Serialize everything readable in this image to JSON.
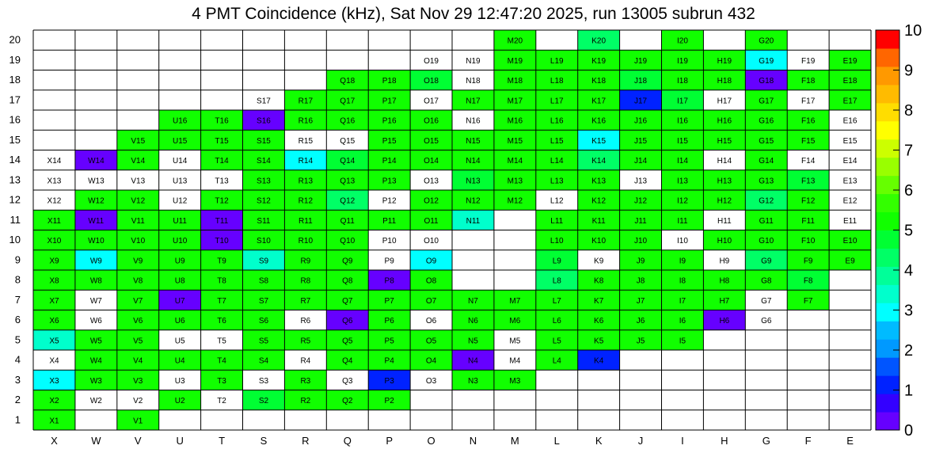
{
  "chart_data": {
    "type": "heatmap",
    "title": "4 PMT Coincidence (kHz), Sat Nov 29 12:47:20 2025, run 13005 subrun 432",
    "columns": [
      "X",
      "W",
      "V",
      "U",
      "T",
      "S",
      "R",
      "Q",
      "P",
      "O",
      "N",
      "M",
      "L",
      "K",
      "J",
      "I",
      "H",
      "G",
      "F",
      "E"
    ],
    "rows": [
      "1",
      "2",
      "3",
      "4",
      "5",
      "6",
      "7",
      "8",
      "9",
      "10",
      "11",
      "12",
      "13",
      "14",
      "15",
      "16",
      "17",
      "18",
      "19",
      "20"
    ],
    "zlim": [
      0,
      10
    ],
    "colorbar_ticks": [
      "0",
      "1",
      "2",
      "3",
      "4",
      "5",
      "6",
      "7",
      "8",
      "9",
      "10"
    ],
    "cells": {
      "20": {
        "M": 5.0,
        "K": 4.4,
        "I": 5.0,
        "G": 5.0
      },
      "19": {
        "O": null,
        "N": null,
        "M": 5.0,
        "L": 5.0,
        "K": 5.0,
        "J": 5.0,
        "I": 5.0,
        "H": 5.0,
        "G": 3.0,
        "F": null,
        "E": 5.0
      },
      "18": {
        "Q": 5.0,
        "P": 5.0,
        "O": 4.6,
        "N": null,
        "M": 5.0,
        "L": 5.0,
        "K": 5.0,
        "J": 4.8,
        "I": 5.0,
        "H": 5.0,
        "G": 0.2,
        "F": 5.0,
        "E": 5.0
      },
      "17": {
        "S": null,
        "R": 5.0,
        "Q": 5.0,
        "P": 5.0,
        "O": null,
        "N": 5.0,
        "M": 5.0,
        "L": 5.0,
        "K": 5.0,
        "J": 1.2,
        "I": 4.8,
        "H": null,
        "G": 5.0,
        "F": null,
        "E": 5.0
      },
      "16": {
        "U": 5.0,
        "T": 5.0,
        "S": 0.3,
        "R": 5.0,
        "Q": 5.0,
        "P": 5.0,
        "O": 5.0,
        "N": null,
        "M": 5.0,
        "L": 5.0,
        "K": 5.0,
        "J": 5.0,
        "I": 5.0,
        "H": 5.0,
        "G": 5.0,
        "F": 5.0,
        "E": null
      },
      "15": {
        "V": 5.0,
        "U": 5.0,
        "T": 5.0,
        "S": 5.0,
        "R": null,
        "Q": null,
        "P": 5.0,
        "O": 5.0,
        "N": 5.0,
        "M": 5.0,
        "L": 5.0,
        "K": 3.0,
        "J": 5.0,
        "I": 5.0,
        "H": 5.0,
        "G": 5.0,
        "F": 5.0,
        "E": null
      },
      "14": {
        "X": null,
        "W": 0.3,
        "V": 5.0,
        "U": null,
        "T": 5.0,
        "S": 5.0,
        "R": 3.0,
        "Q": 4.6,
        "P": 5.0,
        "O": 5.0,
        "N": 5.0,
        "M": 5.0,
        "L": 5.0,
        "K": 4.4,
        "J": 5.0,
        "I": 5.0,
        "H": null,
        "G": 5.0,
        "F": null,
        "E": null
      },
      "13": {
        "X": null,
        "W": null,
        "V": null,
        "U": null,
        "T": null,
        "S": 5.0,
        "R": 5.0,
        "Q": 5.0,
        "P": 5.0,
        "O": null,
        "N": 4.6,
        "M": 5.0,
        "L": 5.0,
        "K": 5.0,
        "J": null,
        "I": 5.0,
        "H": 5.0,
        "G": 5.0,
        "F": 4.6,
        "E": null
      },
      "12": {
        "X": null,
        "W": 5.0,
        "V": 5.0,
        "U": null,
        "T": 5.0,
        "S": 5.0,
        "R": 5.0,
        "Q": 4.2,
        "P": null,
        "O": 5.0,
        "N": 5.0,
        "M": 5.0,
        "L": null,
        "K": 5.0,
        "J": 5.0,
        "I": 5.0,
        "H": 5.0,
        "G": 4.2,
        "F": 5.0,
        "E": null
      },
      "11": {
        "X": 5.0,
        "W": 0.3,
        "V": 5.0,
        "U": 5.0,
        "T": 0.3,
        "S": 5.0,
        "R": 5.0,
        "Q": 5.0,
        "P": 5.0,
        "O": 5.0,
        "N": 3.6,
        "L": 5.0,
        "K": 5.0,
        "J": 5.0,
        "I": 5.0,
        "H": null,
        "G": 5.0,
        "F": 5.0,
        "E": null
      },
      "10": {
        "X": 5.0,
        "W": 5.0,
        "V": 5.0,
        "U": 5.0,
        "T": 0.3,
        "S": 5.0,
        "R": 5.0,
        "Q": 5.0,
        "P": null,
        "O": null,
        "L": 5.0,
        "K": 5.0,
        "J": 5.0,
        "I": null,
        "H": 5.0,
        "G": 5.0,
        "F": 5.0,
        "E": 5.0
      },
      "9": {
        "X": 5.0,
        "W": 3.0,
        "V": 5.0,
        "U": 5.0,
        "T": 5.0,
        "S": 3.6,
        "R": 5.0,
        "Q": 5.0,
        "P": null,
        "O": 3.0,
        "L": 4.6,
        "K": null,
        "J": 5.0,
        "I": 5.0,
        "H": null,
        "G": 4.2,
        "F": 5.0,
        "E": 5.0
      },
      "8": {
        "X": 5.0,
        "W": 5.0,
        "V": 5.0,
        "U": 5.0,
        "T": 5.0,
        "S": 5.0,
        "R": 5.0,
        "Q": 5.0,
        "P": 0.3,
        "O": 5.0,
        "L": 4.2,
        "K": 5.0,
        "J": 5.0,
        "I": 5.0,
        "H": 5.0,
        "G": 5.0,
        "F": 4.8
      },
      "7": {
        "X": 5.0,
        "W": null,
        "V": 5.0,
        "U": 0.3,
        "T": 5.0,
        "S": 5.0,
        "R": 5.0,
        "Q": 5.0,
        "P": 5.0,
        "O": 5.0,
        "N": 5.0,
        "M": 5.0,
        "L": 5.0,
        "K": 5.0,
        "J": 5.0,
        "I": 5.0,
        "H": 5.0,
        "G": null,
        "F": 5.0
      },
      "6": {
        "X": 5.0,
        "W": null,
        "V": 5.0,
        "U": 5.0,
        "T": 5.0,
        "S": 5.0,
        "R": null,
        "Q": 0.3,
        "P": 5.0,
        "O": null,
        "N": 5.0,
        "M": 5.0,
        "L": 5.0,
        "K": 5.0,
        "J": 5.0,
        "I": 5.0,
        "H": 0.3,
        "G": null
      },
      "5": {
        "X": 3.6,
        "W": 5.0,
        "V": 5.0,
        "U": null,
        "T": null,
        "S": 5.0,
        "R": 5.0,
        "Q": 5.0,
        "P": 5.0,
        "O": 5.0,
        "N": 5.0,
        "M": null,
        "L": 5.0,
        "K": 5.0,
        "J": 5.0,
        "I": 5.0
      },
      "4": {
        "X": null,
        "W": 5.0,
        "V": 5.0,
        "U": 5.0,
        "T": 5.0,
        "S": 5.0,
        "R": null,
        "Q": 5.0,
        "P": 5.0,
        "O": 5.0,
        "N": 0.3,
        "M": null,
        "L": 5.0,
        "K": 1.2
      },
      "3": {
        "X": 3.0,
        "W": 5.0,
        "V": 5.0,
        "U": null,
        "T": 5.0,
        "S": null,
        "R": 5.0,
        "Q": null,
        "P": 1.2,
        "O": null,
        "N": 5.0,
        "M": 5.0
      },
      "2": {
        "X": 5.0,
        "W": null,
        "V": null,
        "U": 5.0,
        "T": null,
        "S": 4.6,
        "R": 5.0,
        "Q": 5.0,
        "P": 5.0
      },
      "1": {
        "X": 5.0,
        "V": 5.0
      }
    }
  }
}
